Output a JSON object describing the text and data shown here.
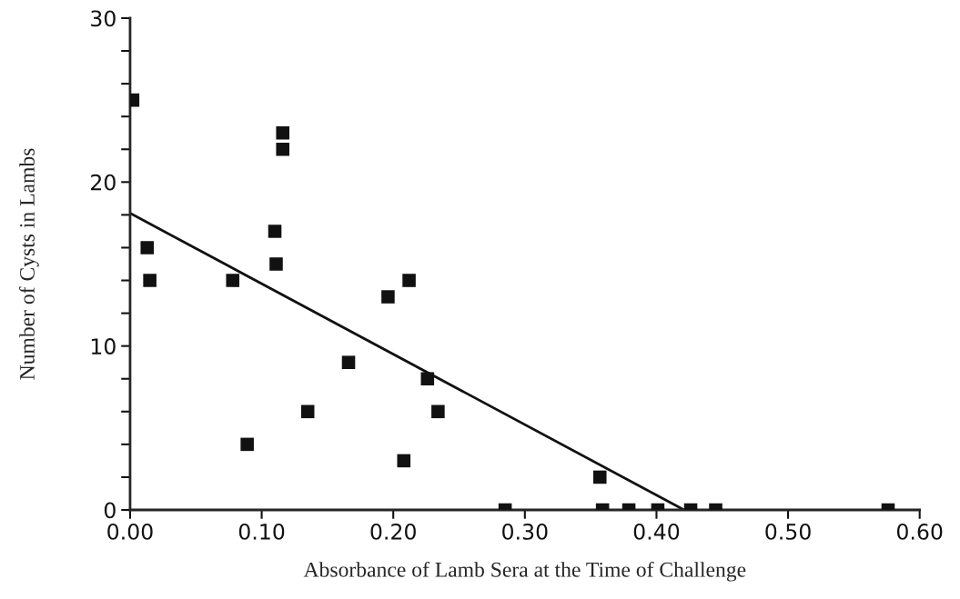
{
  "chart_data": {
    "type": "scatter",
    "xlabel": "Absorbance of Lamb Sera at the Time of Challenge",
    "ylabel": "Number of Cysts in Lambs",
    "series": [
      {
        "color": "#111111",
        "marker": "square",
        "x": [
          0.002,
          0.013,
          0.015,
          0.078,
          0.089,
          0.11,
          0.111,
          0.116,
          0.116,
          0.135,
          0.166,
          0.196,
          0.208,
          0.212,
          0.226,
          0.234,
          0.285,
          0.357,
          0.359,
          0.379,
          0.401,
          0.426,
          0.445,
          0.576
        ],
        "values": [
          25,
          16,
          14,
          14,
          4,
          17,
          15,
          22,
          23,
          6,
          9,
          13,
          3,
          14,
          8,
          6,
          0,
          2,
          0,
          0,
          0,
          0,
          0,
          0
        ]
      },
      {
        "type": "line",
        "color": "#111111",
        "line_style": "solid",
        "x": [
          0,
          0.421
        ],
        "values": [
          18.1,
          0
        ]
      }
    ],
    "xlim": [
      0,
      0.6
    ],
    "xticks": [
      {
        "value": 0,
        "label": "0.00"
      },
      {
        "value": 0.1,
        "label": "0.10"
      },
      {
        "value": 0.2,
        "label": "0.20"
      },
      {
        "value": 0.3,
        "label": "0.30"
      },
      {
        "value": 0.4,
        "label": "0.40"
      },
      {
        "value": 0.5,
        "label": "0.50"
      },
      {
        "value": 0.6,
        "label": "0.60"
      }
    ],
    "ylim": [
      0,
      30
    ],
    "yticks": [
      0,
      {
        "value": 2,
        "label": null
      },
      {
        "value": 4,
        "label": null
      },
      {
        "value": 6,
        "label": null
      },
      {
        "value": 8,
        "label": null
      },
      10,
      {
        "value": 12,
        "label": null
      },
      {
        "value": 14,
        "label": null
      },
      {
        "value": 16,
        "label": null
      },
      {
        "value": 18,
        "label": null
      },
      20,
      {
        "value": 22,
        "label": null
      },
      {
        "value": 24,
        "label": null
      },
      {
        "value": 26,
        "label": null
      },
      {
        "value": 28,
        "label": null
      },
      30
    ],
    "grid": false,
    "legend": false
  }
}
